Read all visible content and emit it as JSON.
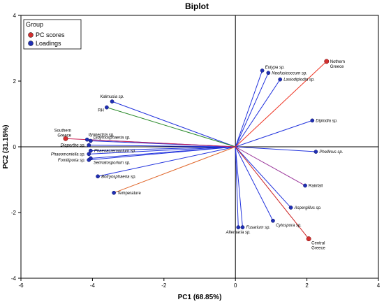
{
  "chart_data": {
    "type": "scatter",
    "title": "Biplot",
    "xlabel": "PC1 (68.85%)",
    "ylabel": "PC2 (31.15%)",
    "xlim": [
      -6,
      4
    ],
    "ylim": [
      -4,
      4
    ],
    "xticks": [
      "-6",
      "-4",
      "-2",
      "0",
      "2",
      "4"
    ],
    "yticks": [
      "-4",
      "-2",
      "0",
      "2",
      "4"
    ],
    "xtick_values": [
      -6,
      -4,
      -2,
      0,
      2,
      4
    ],
    "ytick_values": [
      -4,
      -2,
      0,
      2,
      4
    ],
    "grid": false,
    "legend": {
      "title": "Group",
      "position": "top-left",
      "entries": [
        {
          "label": "PC scores",
          "color": "#d32f2f"
        },
        {
          "label": "Loadings",
          "color": "#1f2fb5"
        }
      ]
    },
    "pc_scores": [
      {
        "label": "Nothern Greece",
        "x": 2.55,
        "y": 2.6,
        "line_color": "#ee3322",
        "label_anchor": "right"
      },
      {
        "label": "Southern Greece",
        "x": -4.75,
        "y": 0.25,
        "line_color": "#cc2255",
        "label_anchor": "above-left"
      },
      {
        "label": "Central Greece",
        "x": 2.05,
        "y": -2.8,
        "line_color": "#cc2222",
        "label_anchor": "below-right"
      }
    ],
    "loadings": [
      {
        "label": "Eutypa sp.",
        "x": 0.75,
        "y": 2.32,
        "line_color": "#2233dd",
        "label_anchor": "right-up"
      },
      {
        "label": "Neofusicoccum sp.",
        "x": 0.92,
        "y": 2.25,
        "line_color": "#2233dd",
        "label_anchor": "right"
      },
      {
        "label": "Lasiodiplodia sp.",
        "x": 1.25,
        "y": 2.05,
        "line_color": "#2233dd",
        "label_anchor": "right"
      },
      {
        "label": "Diplodia sp.",
        "x": 2.15,
        "y": 0.8,
        "line_color": "#2233dd",
        "label_anchor": "right"
      },
      {
        "label": "Phellinus sp.",
        "x": 2.25,
        "y": -0.15,
        "line_color": "#2233dd",
        "label_anchor": "right"
      },
      {
        "label": "Aspergillus sp.",
        "x": 1.55,
        "y": -1.85,
        "line_color": "#2233dd",
        "label_anchor": "right"
      },
      {
        "label": "Cytospora sp.",
        "x": 1.05,
        "y": -2.25,
        "line_color": "#2233dd",
        "label_anchor": "below-right"
      },
      {
        "label": "Fusarium sp.",
        "x": 0.2,
        "y": -2.45,
        "line_color": "#2233dd",
        "label_anchor": "right"
      },
      {
        "label": "Alternaria sp.",
        "x": 0.08,
        "y": -2.45,
        "line_color": "#2233dd",
        "label_anchor": "below"
      },
      {
        "label": "Kalmusia sp.",
        "x": -3.45,
        "y": 1.38,
        "line_color": "#2233dd",
        "label_anchor": "above"
      },
      {
        "label": "Ilyonectria sp.",
        "x": -4.15,
        "y": 0.22,
        "line_color": "#2233dd",
        "label_anchor": "above-right"
      },
      {
        "label": "Didymosphaeria sp.",
        "x": -4.05,
        "y": 0.18,
        "line_color": "#2233dd",
        "label_anchor": "right-up"
      },
      {
        "label": "Diaporthe sp.",
        "x": -4.1,
        "y": 0.05,
        "line_color": "#2233dd",
        "label_anchor": "left"
      },
      {
        "label": "Phaeoacremonium sp.",
        "x": -4.05,
        "y": -0.12,
        "line_color": "#2233dd",
        "label_anchor": "right"
      },
      {
        "label": "Phaeomoniella sp.",
        "x": -4.1,
        "y": -0.22,
        "line_color": "#2233dd",
        "label_anchor": "left"
      },
      {
        "label": "Fomitiporia sp.",
        "x": -4.1,
        "y": -0.4,
        "line_color": "#2233dd",
        "label_anchor": "left"
      },
      {
        "label": "Seimatosporium sp.",
        "x": -4.05,
        "y": -0.35,
        "line_color": "#2233dd",
        "label_anchor": "below-right"
      },
      {
        "label": "Botryosphaeria sp.",
        "x": -3.85,
        "y": -0.9,
        "line_color": "#2233dd",
        "label_anchor": "right"
      },
      {
        "label": "RH",
        "x": -3.6,
        "y": 1.2,
        "line_color": "#2a8a2a",
        "label_anchor": "below-left"
      },
      {
        "label": "Temperature",
        "x": -3.4,
        "y": -1.4,
        "line_color": "#e0662a",
        "label_anchor": "right"
      },
      {
        "label": "Rainfall",
        "x": 1.95,
        "y": -1.18,
        "line_color": "#993399",
        "label_anchor": "right"
      }
    ]
  }
}
